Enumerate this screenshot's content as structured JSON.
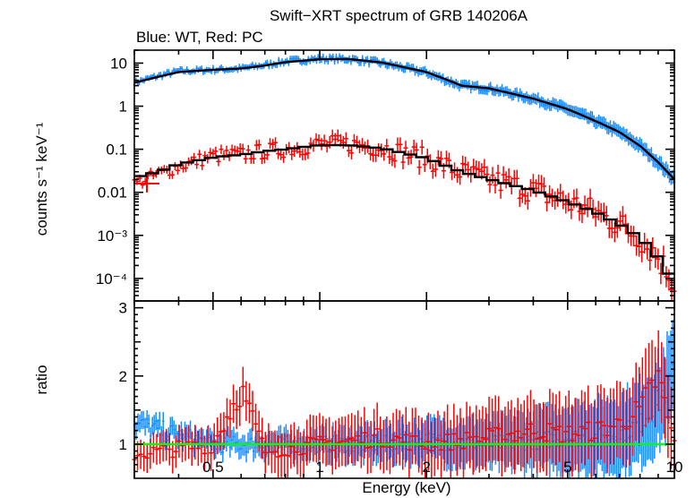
{
  "chart_data": {
    "title": "Swift−XRT spectrum of GRB 140206A",
    "subtitle": "Blue: WT, Red: PC",
    "xlabel": "Energy (keV)",
    "x_scale": "log",
    "xlim": [
      0.3,
      10
    ],
    "x_ticks": [
      {
        "value": 0.5,
        "label": "0.5"
      },
      {
        "value": 1,
        "label": "1"
      },
      {
        "value": 2,
        "label": "2"
      },
      {
        "value": 5,
        "label": "5"
      },
      {
        "value": 10,
        "label": "10"
      }
    ],
    "panels": [
      {
        "name": "spectrum",
        "type": "scatter",
        "ylabel": "counts s⁻¹ keV⁻¹",
        "y_scale": "log",
        "ylim": [
          3e-05,
          20
        ],
        "y_ticks": [
          {
            "value": 10,
            "label": "10"
          },
          {
            "value": 1,
            "label": "1"
          },
          {
            "value": 0.1,
            "label": "0.1"
          },
          {
            "value": 0.01,
            "label": "0.01"
          },
          {
            "value": 0.001,
            "label": "10⁻³"
          },
          {
            "value": 0.0001,
            "label": "10⁻⁴"
          }
        ],
        "series": [
          {
            "color": "#1a8cff",
            "x": [
              0.3,
              0.35,
              0.4,
              0.5,
              0.6,
              0.7,
              0.8,
              1.0,
              1.2,
              1.5,
              2.0,
              2.5,
              3.0,
              4.0,
              5.0,
              6.0,
              7.0,
              8.0,
              9.0,
              10.0
            ],
            "y": [
              3.5,
              5,
              6.5,
              7,
              7.5,
              9,
              11,
              12.5,
              12.5,
              10,
              6,
              3,
              2.6,
              1.5,
              0.85,
              0.45,
              0.25,
              0.12,
              0.05,
              0.02
            ]
          },
          {
            "color": "#ff0000",
            "x": [
              0.3,
              0.4,
              0.5,
              0.6,
              0.7,
              0.8,
              1.0,
              1.2,
              1.5,
              2.0,
              2.5,
              3.0,
              4.0,
              5.0,
              6.0,
              7.0,
              8.0,
              9.0,
              10.0
            ],
            "y": [
              0.016,
              0.04,
              0.07,
              0.075,
              0.09,
              0.1,
              0.13,
              0.13,
              0.11,
              0.06,
              0.03,
              0.02,
              0.011,
              0.006,
              0.0035,
              0.0018,
              0.0009,
              0.0003,
              8e-05
            ]
          }
        ],
        "model": {
          "color": "#000000",
          "wt_x": [
            0.3,
            0.35,
            0.4,
            0.5,
            0.6,
            0.7,
            0.8,
            1.0,
            1.2,
            1.5,
            2.0,
            2.4,
            2.5,
            3.0,
            4.0,
            5.0,
            6.0,
            7.0,
            8.0,
            9.0,
            10.0
          ],
          "wt_y": [
            3.5,
            4.8,
            6.2,
            7,
            7.5,
            8.8,
            10.5,
            12.3,
            12.5,
            10.3,
            6.2,
            3.5,
            3.0,
            2.6,
            1.5,
            0.85,
            0.45,
            0.25,
            0.12,
            0.05,
            0.02
          ],
          "pc_x": [
            0.3,
            0.35,
            0.4,
            0.5,
            0.6,
            0.7,
            0.8,
            1.0,
            1.2,
            1.5,
            2.0,
            2.5,
            3.0,
            4.0,
            5.0,
            6.0,
            7.0,
            8.0,
            9.0,
            10.0
          ],
          "pc_y": [
            0.022,
            0.03,
            0.045,
            0.065,
            0.075,
            0.09,
            0.1,
            0.125,
            0.125,
            0.105,
            0.062,
            0.03,
            0.02,
            0.011,
            0.006,
            0.0034,
            0.0018,
            0.0009,
            0.0003,
            8e-05
          ]
        }
      },
      {
        "name": "ratio",
        "type": "scatter",
        "ylabel": "ratio",
        "y_scale": "linear",
        "ylim": [
          0.5,
          3.1
        ],
        "y_ticks": [
          {
            "value": 1,
            "label": "1"
          },
          {
            "value": 2,
            "label": "2"
          },
          {
            "value": 3,
            "label": "3"
          }
        ],
        "reference_line": {
          "value": 1,
          "color": "#00ff00"
        },
        "series": [
          {
            "color": "#1a8cff",
            "x": [
              0.3,
              0.5,
              0.7,
              1.0,
              1.5,
              2.0,
              3.0,
              4.0,
              5.0,
              6.0,
              7.0,
              8.0,
              9.0,
              10.0
            ],
            "y": [
              1.3,
              1.0,
              1.0,
              1.0,
              1.0,
              1.05,
              1.0,
              1.05,
              1.1,
              1.1,
              1.15,
              1.3,
              1.6,
              2.0
            ]
          },
          {
            "color": "#ff0000",
            "x": [
              0.3,
              0.5,
              0.6,
              0.7,
              1.0,
              1.5,
              2.0,
              3.0,
              4.0,
              5.0,
              6.0,
              7.0,
              8.0,
              9.0,
              10.0
            ],
            "y": [
              0.85,
              1.0,
              1.8,
              0.9,
              1.0,
              1.1,
              1.0,
              1.1,
              1.2,
              1.15,
              1.2,
              1.3,
              1.5,
              2.0,
              1.0
            ]
          }
        ]
      }
    ]
  }
}
